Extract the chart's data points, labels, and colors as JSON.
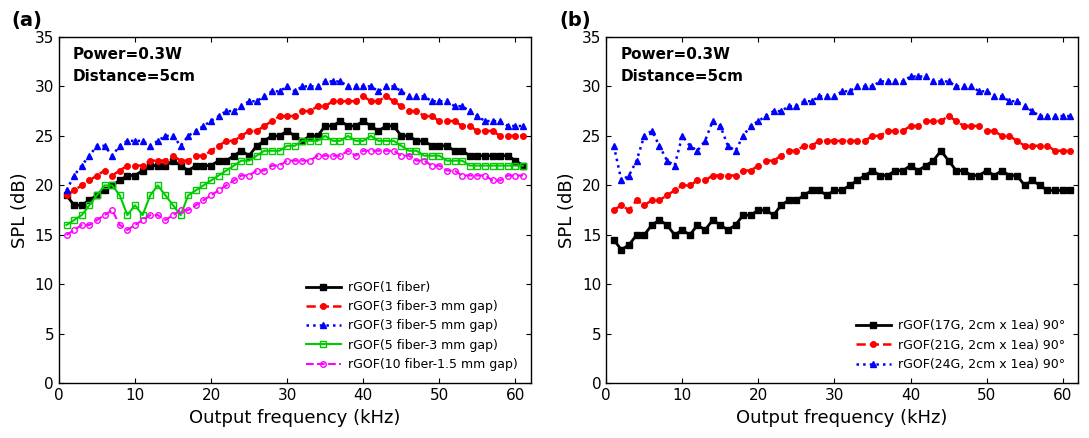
{
  "panel_a": {
    "annotation": "Power=0.3W\nDistance=5cm",
    "xlabel": "Output frequency (kHz)",
    "ylabel": "SPL (dB)",
    "xlim": [
      0,
      62
    ],
    "ylim": [
      0,
      35
    ],
    "yticks": [
      0,
      5,
      10,
      15,
      20,
      25,
      30,
      35
    ],
    "xticks": [
      0,
      10,
      20,
      30,
      40,
      50,
      60
    ],
    "series": [
      {
        "label": "rGOF(1 fiber)",
        "color": "#000000",
        "linestyle": "-",
        "marker": "s",
        "markerfacecolor": "#000000",
        "markeredgecolor": "#000000",
        "linewidth": 2.0,
        "markersize": 4,
        "x": [
          1,
          2,
          3,
          4,
          5,
          6,
          7,
          8,
          9,
          10,
          11,
          12,
          13,
          14,
          15,
          16,
          17,
          18,
          19,
          20,
          21,
          22,
          23,
          24,
          25,
          26,
          27,
          28,
          29,
          30,
          31,
          32,
          33,
          34,
          35,
          36,
          37,
          38,
          39,
          40,
          41,
          42,
          43,
          44,
          45,
          46,
          47,
          48,
          49,
          50,
          51,
          52,
          53,
          54,
          55,
          56,
          57,
          58,
          59,
          60,
          61
        ],
        "y": [
          19,
          18,
          18,
          18.5,
          19,
          19.5,
          20,
          20.5,
          21,
          21,
          21.5,
          22,
          22,
          22,
          22.5,
          22,
          21.5,
          22,
          22,
          22,
          22.5,
          22.5,
          23,
          23.5,
          23,
          24,
          24.5,
          25,
          25,
          25.5,
          25,
          24.5,
          25,
          25,
          26,
          26,
          26.5,
          26,
          26,
          26.5,
          26,
          25.5,
          26,
          26,
          25,
          25,
          24.5,
          24.5,
          24,
          24,
          24,
          23.5,
          23.5,
          23,
          23,
          23,
          23,
          23,
          23,
          22.5,
          22
        ]
      },
      {
        "label": "rGOF(3 fiber-3 mm gap)",
        "color": "#ff0000",
        "linestyle": "--",
        "marker": "o",
        "markerfacecolor": "#ff0000",
        "markeredgecolor": "#ff0000",
        "linewidth": 1.8,
        "markersize": 4,
        "x": [
          1,
          2,
          3,
          4,
          5,
          6,
          7,
          8,
          9,
          10,
          11,
          12,
          13,
          14,
          15,
          16,
          17,
          18,
          19,
          20,
          21,
          22,
          23,
          24,
          25,
          26,
          27,
          28,
          29,
          30,
          31,
          32,
          33,
          34,
          35,
          36,
          37,
          38,
          39,
          40,
          41,
          42,
          43,
          44,
          45,
          46,
          47,
          48,
          49,
          50,
          51,
          52,
          53,
          54,
          55,
          56,
          57,
          58,
          59,
          60,
          61
        ],
        "y": [
          19,
          19.5,
          20,
          20.5,
          21,
          21.5,
          21,
          21.5,
          22,
          22,
          22,
          22.5,
          22.5,
          22.5,
          23,
          22.5,
          22.5,
          23,
          23,
          23.5,
          24,
          24.5,
          24.5,
          25,
          25.5,
          25.5,
          26,
          26.5,
          27,
          27,
          27,
          27.5,
          27.5,
          28,
          28,
          28.5,
          28.5,
          28.5,
          28.5,
          29,
          28.5,
          28.5,
          29,
          28.5,
          28,
          27.5,
          27.5,
          27,
          27,
          26.5,
          26.5,
          26.5,
          26,
          26,
          25.5,
          25.5,
          25.5,
          25,
          25,
          25,
          25
        ]
      },
      {
        "label": "rGOF(3 fiber-5 mm gap)",
        "color": "#0000ff",
        "linestyle": ":",
        "marker": "^",
        "markerfacecolor": "#0000ff",
        "markeredgecolor": "#0000ff",
        "linewidth": 1.8,
        "markersize": 5,
        "x": [
          1,
          2,
          3,
          4,
          5,
          6,
          7,
          8,
          9,
          10,
          11,
          12,
          13,
          14,
          15,
          16,
          17,
          18,
          19,
          20,
          21,
          22,
          23,
          24,
          25,
          26,
          27,
          28,
          29,
          30,
          31,
          32,
          33,
          34,
          35,
          36,
          37,
          38,
          39,
          40,
          41,
          42,
          43,
          44,
          45,
          46,
          47,
          48,
          49,
          50,
          51,
          52,
          53,
          54,
          55,
          56,
          57,
          58,
          59,
          60,
          61
        ],
        "y": [
          19.5,
          21,
          22,
          23,
          24,
          24,
          23,
          24,
          24.5,
          24.5,
          24.5,
          24,
          24.5,
          25,
          25,
          24,
          25,
          25.5,
          26,
          26.5,
          27,
          27.5,
          27.5,
          28,
          28.5,
          28.5,
          29,
          29.5,
          29.5,
          30,
          29.5,
          30,
          30,
          30,
          30.5,
          30.5,
          30.5,
          30,
          30,
          30,
          30,
          29.5,
          30,
          30,
          29.5,
          29,
          29,
          29,
          28.5,
          28.5,
          28.5,
          28,
          28,
          27.5,
          27,
          26.5,
          26.5,
          26.5,
          26,
          26,
          26
        ]
      },
      {
        "label": "rGOF(5 fiber-3 mm gap)",
        "color": "#00cc00",
        "linestyle": "-",
        "marker": "s",
        "markerfacecolor": "none",
        "markeredgecolor": "#00cc00",
        "linewidth": 1.5,
        "markersize": 4,
        "x": [
          1,
          2,
          3,
          4,
          5,
          6,
          7,
          8,
          9,
          10,
          11,
          12,
          13,
          14,
          15,
          16,
          17,
          18,
          19,
          20,
          21,
          22,
          23,
          24,
          25,
          26,
          27,
          28,
          29,
          30,
          31,
          32,
          33,
          34,
          35,
          36,
          37,
          38,
          39,
          40,
          41,
          42,
          43,
          44,
          45,
          46,
          47,
          48,
          49,
          50,
          51,
          52,
          53,
          54,
          55,
          56,
          57,
          58,
          59,
          60,
          61
        ],
        "y": [
          16,
          16.5,
          17,
          18,
          19,
          20,
          20,
          19,
          17,
          18,
          17,
          19,
          20,
          19,
          18,
          17,
          19,
          19.5,
          20,
          20.5,
          21,
          21.5,
          22,
          22.5,
          22.5,
          23,
          23.5,
          23.5,
          23.5,
          24,
          24,
          24.5,
          24.5,
          24.5,
          25,
          24.5,
          24.5,
          25,
          24.5,
          24.5,
          25,
          24.5,
          24.5,
          24.5,
          24,
          23.5,
          23.5,
          23,
          23,
          23,
          22.5,
          22.5,
          22.5,
          22,
          22,
          22,
          22,
          22,
          22,
          22,
          22
        ]
      },
      {
        "label": "rGOF(10 fiber-1.5 mm gap)",
        "color": "#ff00ff",
        "linestyle": "--",
        "marker": "o",
        "markerfacecolor": "none",
        "markeredgecolor": "#ff00ff",
        "linewidth": 1.5,
        "markersize": 4,
        "x": [
          1,
          2,
          3,
          4,
          5,
          6,
          7,
          8,
          9,
          10,
          11,
          12,
          13,
          14,
          15,
          16,
          17,
          18,
          19,
          20,
          21,
          22,
          23,
          24,
          25,
          26,
          27,
          28,
          29,
          30,
          31,
          32,
          33,
          34,
          35,
          36,
          37,
          38,
          39,
          40,
          41,
          42,
          43,
          44,
          45,
          46,
          47,
          48,
          49,
          50,
          51,
          52,
          53,
          54,
          55,
          56,
          57,
          58,
          59,
          60,
          61
        ],
        "y": [
          15,
          15.5,
          16,
          16,
          16.5,
          17,
          17.5,
          16,
          15.5,
          16,
          16.5,
          17,
          17,
          16.5,
          17,
          17.5,
          17.5,
          18,
          18.5,
          19,
          19.5,
          20,
          20.5,
          21,
          21,
          21.5,
          21.5,
          22,
          22,
          22.5,
          22.5,
          22.5,
          22.5,
          23,
          23,
          23,
          23,
          23.5,
          23,
          23.5,
          23.5,
          23.5,
          23.5,
          23.5,
          23,
          23,
          22.5,
          22.5,
          22,
          22,
          21.5,
          21.5,
          21,
          21,
          21,
          21,
          20.5,
          20.5,
          21,
          21,
          21
        ]
      }
    ]
  },
  "panel_b": {
    "annotation": "Power=0.3W\nDistance=5cm",
    "xlabel": "Output frequency (kHz)",
    "ylabel": "SPL (dB)",
    "xlim": [
      0,
      62
    ],
    "ylim": [
      0,
      35
    ],
    "yticks": [
      0,
      5,
      10,
      15,
      20,
      25,
      30,
      35
    ],
    "xticks": [
      0,
      10,
      20,
      30,
      40,
      50,
      60
    ],
    "series": [
      {
        "label": "rGOF(17G, 2cm x 1ea) 90°",
        "color": "#000000",
        "linestyle": "-",
        "marker": "s",
        "markerfacecolor": "#000000",
        "markeredgecolor": "#000000",
        "linewidth": 2.0,
        "markersize": 4,
        "x": [
          1,
          2,
          3,
          4,
          5,
          6,
          7,
          8,
          9,
          10,
          11,
          12,
          13,
          14,
          15,
          16,
          17,
          18,
          19,
          20,
          21,
          22,
          23,
          24,
          25,
          26,
          27,
          28,
          29,
          30,
          31,
          32,
          33,
          34,
          35,
          36,
          37,
          38,
          39,
          40,
          41,
          42,
          43,
          44,
          45,
          46,
          47,
          48,
          49,
          50,
          51,
          52,
          53,
          54,
          55,
          56,
          57,
          58,
          59,
          60,
          61
        ],
        "y": [
          14.5,
          13.5,
          14,
          15,
          15,
          16,
          16.5,
          16,
          15,
          15.5,
          15,
          16,
          15.5,
          16.5,
          16,
          15.5,
          16,
          17,
          17,
          17.5,
          17.5,
          17,
          18,
          18.5,
          18.5,
          19,
          19.5,
          19.5,
          19,
          19.5,
          19.5,
          20,
          20.5,
          21,
          21.5,
          21,
          21,
          21.5,
          21.5,
          22,
          21.5,
          22,
          22.5,
          23.5,
          22.5,
          21.5,
          21.5,
          21,
          21,
          21.5,
          21,
          21.5,
          21,
          21,
          20,
          20.5,
          20,
          19.5,
          19.5,
          19.5,
          19.5
        ]
      },
      {
        "label": "rGOF(21G, 2cm x 1ea) 90°",
        "color": "#ff0000",
        "linestyle": "--",
        "marker": "o",
        "markerfacecolor": "#ff0000",
        "markeredgecolor": "#ff0000",
        "linewidth": 1.8,
        "markersize": 4,
        "x": [
          1,
          2,
          3,
          4,
          5,
          6,
          7,
          8,
          9,
          10,
          11,
          12,
          13,
          14,
          15,
          16,
          17,
          18,
          19,
          20,
          21,
          22,
          23,
          24,
          25,
          26,
          27,
          28,
          29,
          30,
          31,
          32,
          33,
          34,
          35,
          36,
          37,
          38,
          39,
          40,
          41,
          42,
          43,
          44,
          45,
          46,
          47,
          48,
          49,
          50,
          51,
          52,
          53,
          54,
          55,
          56,
          57,
          58,
          59,
          60,
          61
        ],
        "y": [
          17.5,
          18,
          17.5,
          18.5,
          18,
          18.5,
          18.5,
          19,
          19.5,
          20,
          20,
          20.5,
          20.5,
          21,
          21,
          21,
          21,
          21.5,
          21.5,
          22,
          22.5,
          22.5,
          23,
          23.5,
          23.5,
          24,
          24,
          24.5,
          24.5,
          24.5,
          24.5,
          24.5,
          24.5,
          24.5,
          25,
          25,
          25.5,
          25.5,
          25.5,
          26,
          26,
          26.5,
          26.5,
          26.5,
          27,
          26.5,
          26,
          26,
          26,
          25.5,
          25.5,
          25,
          25,
          24.5,
          24,
          24,
          24,
          24,
          23.5,
          23.5,
          23.5
        ]
      },
      {
        "label": "rGOF(24G, 2cm x 1ea) 90°",
        "color": "#0000ff",
        "linestyle": ":",
        "marker": "^",
        "markerfacecolor": "#0000ff",
        "markeredgecolor": "#0000ff",
        "linewidth": 1.8,
        "markersize": 5,
        "x": [
          1,
          2,
          3,
          4,
          5,
          6,
          7,
          8,
          9,
          10,
          11,
          12,
          13,
          14,
          15,
          16,
          17,
          18,
          19,
          20,
          21,
          22,
          23,
          24,
          25,
          26,
          27,
          28,
          29,
          30,
          31,
          32,
          33,
          34,
          35,
          36,
          37,
          38,
          39,
          40,
          41,
          42,
          43,
          44,
          45,
          46,
          47,
          48,
          49,
          50,
          51,
          52,
          53,
          54,
          55,
          56,
          57,
          58,
          59,
          60,
          61
        ],
        "y": [
          24,
          20.5,
          21,
          22.5,
          25,
          25.5,
          24,
          22.5,
          22,
          25,
          24,
          23.5,
          24.5,
          26.5,
          26,
          24,
          23.5,
          25,
          26,
          26.5,
          27,
          27.5,
          27.5,
          28,
          28,
          28.5,
          28.5,
          29,
          29,
          29,
          29.5,
          29.5,
          30,
          30,
          30,
          30.5,
          30.5,
          30.5,
          30.5,
          31,
          31,
          31,
          30.5,
          30.5,
          30.5,
          30,
          30,
          30,
          29.5,
          29.5,
          29,
          29,
          28.5,
          28.5,
          28,
          27.5,
          27,
          27,
          27,
          27,
          27
        ]
      }
    ]
  }
}
